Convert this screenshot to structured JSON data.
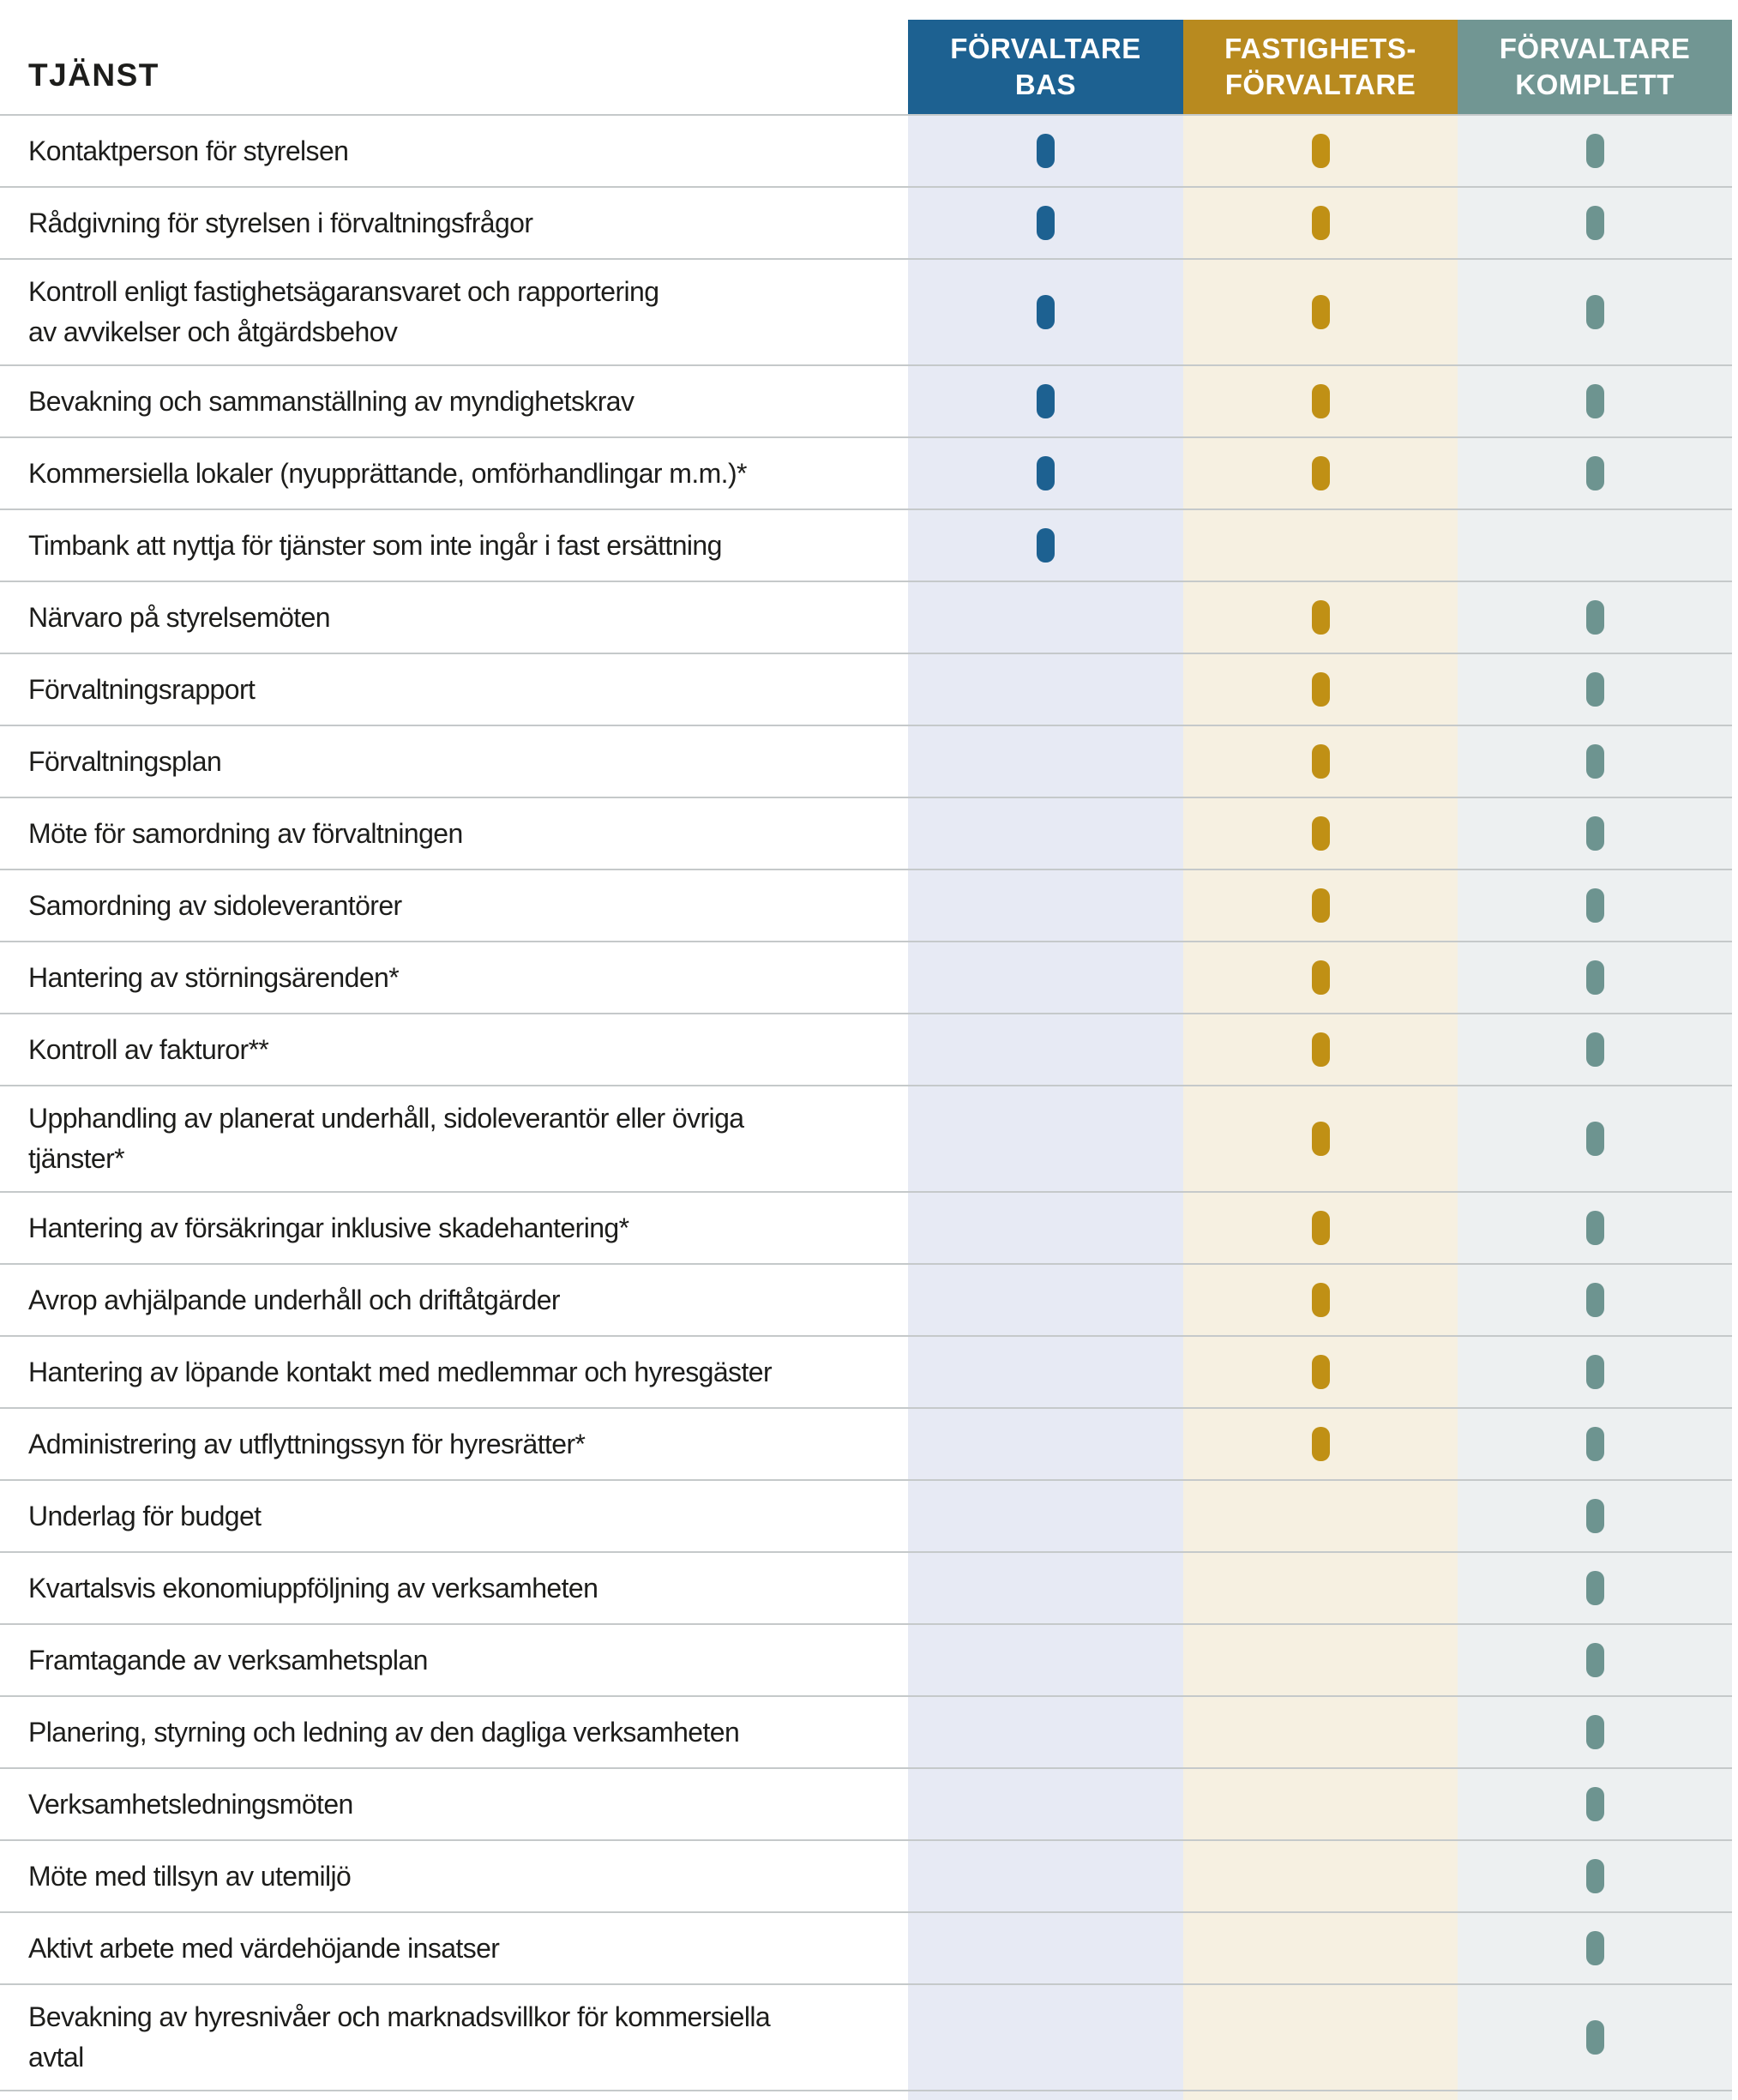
{
  "table": {
    "service_column_header": "TJÄNST",
    "plans": [
      {
        "id": "forvaltare-bas",
        "label": "FÖRVALTARE\nBAS",
        "header_color": "#1d6191",
        "dot_color": "#1d6191",
        "column_tint": "#e7eaf4"
      },
      {
        "id": "fastighetsforvaltare",
        "label": "FASTIGHETS-\nFÖRVALTARE",
        "header_color": "#b88a1f",
        "dot_color": "#c09015",
        "column_tint": "#f6f0e1"
      },
      {
        "id": "forvaltare-komplett",
        "label": "FÖRVALTARE\nKOMPLETT",
        "header_color": "#719693",
        "dot_color": "#6d9490",
        "column_tint": "#edf0f1"
      }
    ],
    "rows": [
      {
        "service": "Kontaktperson för styrelsen",
        "included": [
          true,
          true,
          true
        ]
      },
      {
        "service": "Rådgivning för styrelsen i förvaltningsfrågor",
        "included": [
          true,
          true,
          true
        ]
      },
      {
        "service": "Kontroll enligt fastighetsägaransvaret och rapportering\nav avvikelser och åtgärdsbehov",
        "included": [
          true,
          true,
          true
        ]
      },
      {
        "service": "Bevakning och sammanställning av myndighetskrav",
        "included": [
          true,
          true,
          true
        ]
      },
      {
        "service": "Kommersiella lokaler (nyupprättande, omförhandlingar m.m.)*",
        "included": [
          true,
          true,
          true
        ]
      },
      {
        "service": "Timbank att nyttja för tjänster som inte ingår i fast ersättning",
        "included": [
          true,
          false,
          false
        ]
      },
      {
        "service": "Närvaro på styrelsemöten",
        "included": [
          false,
          true,
          true
        ]
      },
      {
        "service": "Förvaltningsrapport",
        "included": [
          false,
          true,
          true
        ]
      },
      {
        "service": "Förvaltningsplan",
        "included": [
          false,
          true,
          true
        ]
      },
      {
        "service": "Möte för samordning av förvaltningen",
        "included": [
          false,
          true,
          true
        ]
      },
      {
        "service": "Samordning av sidoleverantörer",
        "included": [
          false,
          true,
          true
        ]
      },
      {
        "service": "Hantering av störningsärenden*",
        "included": [
          false,
          true,
          true
        ]
      },
      {
        "service": "Kontroll av fakturor**",
        "included": [
          false,
          true,
          true
        ]
      },
      {
        "service": "Upphandling av planerat underhåll, sidoleverantör eller övriga\ntjänster*",
        "included": [
          false,
          true,
          true
        ]
      },
      {
        "service": "Hantering av försäkringar inklusive skadehantering*",
        "included": [
          false,
          true,
          true
        ]
      },
      {
        "service": "Avrop avhjälpande underhåll och driftåtgärder",
        "included": [
          false,
          true,
          true
        ]
      },
      {
        "service": "Hantering av löpande kontakt med medlemmar och hyresgäster",
        "included": [
          false,
          true,
          true
        ]
      },
      {
        "service": "Administrering av utflyttningssyn för hyresrätter*",
        "included": [
          false,
          true,
          true
        ]
      },
      {
        "service": "Underlag för budget",
        "included": [
          false,
          false,
          true
        ]
      },
      {
        "service": "Kvartalsvis ekonomiuppföljning av verksamheten",
        "included": [
          false,
          false,
          true
        ]
      },
      {
        "service": "Framtagande av verksamhetsplan",
        "included": [
          false,
          false,
          true
        ]
      },
      {
        "service": "Planering, styrning och ledning av den dagliga verksamheten",
        "included": [
          false,
          false,
          true
        ]
      },
      {
        "service": "Verksamhetsledningsmöten",
        "included": [
          false,
          false,
          true
        ]
      },
      {
        "service": "Möte med tillsyn av utemiljö",
        "included": [
          false,
          false,
          true
        ]
      },
      {
        "service": "Aktivt arbete med värdehöjande insatser",
        "included": [
          false,
          false,
          true
        ]
      },
      {
        "service": "Bevakning av hyresnivåer och marknadsvillkor för kommersiella\navtal",
        "included": [
          false,
          false,
          true
        ]
      }
    ]
  },
  "colors": {
    "row_border": "#c5c9ca",
    "text": "#1d1d1b",
    "background": "#ffffff"
  }
}
